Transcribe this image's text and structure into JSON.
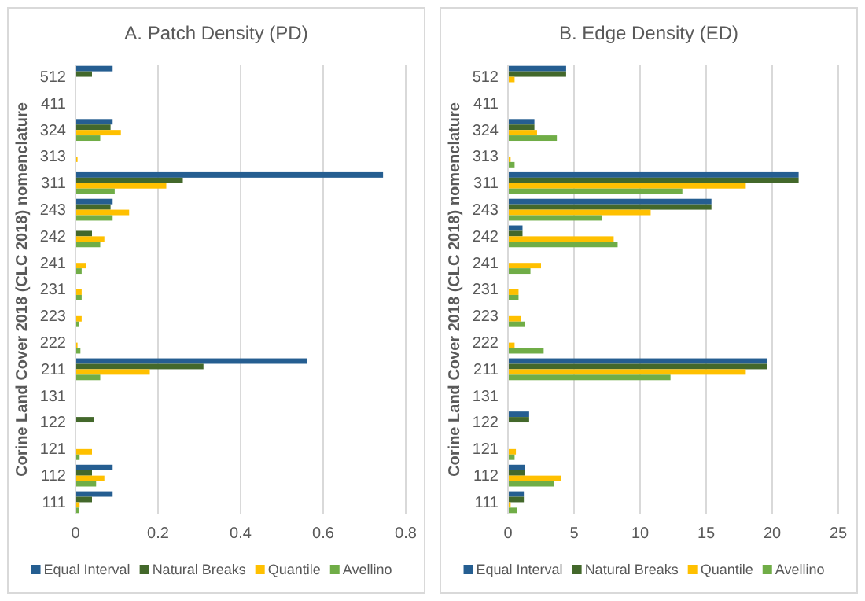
{
  "chart_data": [
    {
      "type": "bar",
      "orientation": "horizontal",
      "title": "A. Patch Density (PD)",
      "ylabel": "Corine Land Cover 2018 (CLC 2018) nomenclature",
      "categories": [
        "512",
        "411",
        "324",
        "313",
        "311",
        "243",
        "242",
        "241",
        "231",
        "223",
        "222",
        "211",
        "131",
        "122",
        "121",
        "112",
        "111"
      ],
      "series": [
        {
          "name": "Equal Interval",
          "color": "#255e91",
          "values": [
            0.09,
            0,
            0.09,
            0,
            0.745,
            0.09,
            0,
            0,
            0,
            0,
            0,
            0.56,
            0,
            0,
            0,
            0.09,
            0.09
          ]
        },
        {
          "name": "Natural Breaks",
          "color": "#43682b",
          "values": [
            0.04,
            0,
            0.085,
            0,
            0.26,
            0.085,
            0.04,
            0,
            0,
            0,
            0,
            0.31,
            0,
            0.045,
            0,
            0.04,
            0.04
          ]
        },
        {
          "name": "Quantile",
          "color": "#ffc000",
          "values": [
            0,
            0,
            0.11,
            0.005,
            0.22,
            0.13,
            0.07,
            0.025,
            0.015,
            0.015,
            0.005,
            0.18,
            0,
            0,
            0.04,
            0.07,
            0.01
          ]
        },
        {
          "name": "Avellino",
          "color": "#70ad47",
          "values": [
            0,
            0,
            0.06,
            0,
            0.095,
            0.09,
            0.06,
            0.015,
            0.015,
            0.008,
            0.012,
            0.06,
            0,
            0,
            0.01,
            0.05,
            0.008
          ]
        }
      ],
      "xlim": [
        0,
        0.8
      ],
      "xticks": [
        0,
        0.2,
        0.4,
        0.6,
        0.8
      ],
      "grid": "x",
      "legend": "bottom"
    },
    {
      "type": "bar",
      "orientation": "horizontal",
      "title": "B. Edge Density (ED)",
      "ylabel": "Corine Land Cover 2018 (CLC 2018) nomenclature",
      "categories": [
        "512",
        "411",
        "324",
        "313",
        "311",
        "243",
        "242",
        "241",
        "231",
        "223",
        "222",
        "211",
        "131",
        "122",
        "121",
        "112",
        "111"
      ],
      "series": [
        {
          "name": "Equal Interval",
          "color": "#255e91",
          "values": [
            4.4,
            0,
            2.0,
            0,
            22.0,
            15.4,
            1.1,
            0,
            0,
            0,
            0,
            19.6,
            0,
            1.6,
            0,
            1.3,
            1.2
          ]
        },
        {
          "name": "Natural Breaks",
          "color": "#43682b",
          "values": [
            4.4,
            0,
            2.0,
            0,
            22.0,
            15.4,
            1.1,
            0,
            0,
            0,
            0,
            19.6,
            0,
            1.6,
            0,
            1.3,
            1.2
          ]
        },
        {
          "name": "Quantile",
          "color": "#ffc000",
          "values": [
            0.5,
            0,
            2.2,
            0.2,
            18.0,
            10.8,
            8.0,
            2.5,
            0.8,
            1.0,
            0.5,
            18.0,
            0,
            0,
            0.6,
            4.0,
            0.2
          ]
        },
        {
          "name": "Avellino",
          "color": "#70ad47",
          "values": [
            0,
            0,
            3.7,
            0.5,
            13.2,
            7.1,
            8.3,
            1.7,
            0.8,
            1.3,
            2.7,
            12.3,
            0,
            0,
            0.5,
            3.5,
            0.7
          ]
        }
      ],
      "xlim": [
        0,
        25
      ],
      "xticks": [
        0,
        5,
        10,
        15,
        20,
        25
      ],
      "grid": "x",
      "legend": "bottom"
    }
  ]
}
